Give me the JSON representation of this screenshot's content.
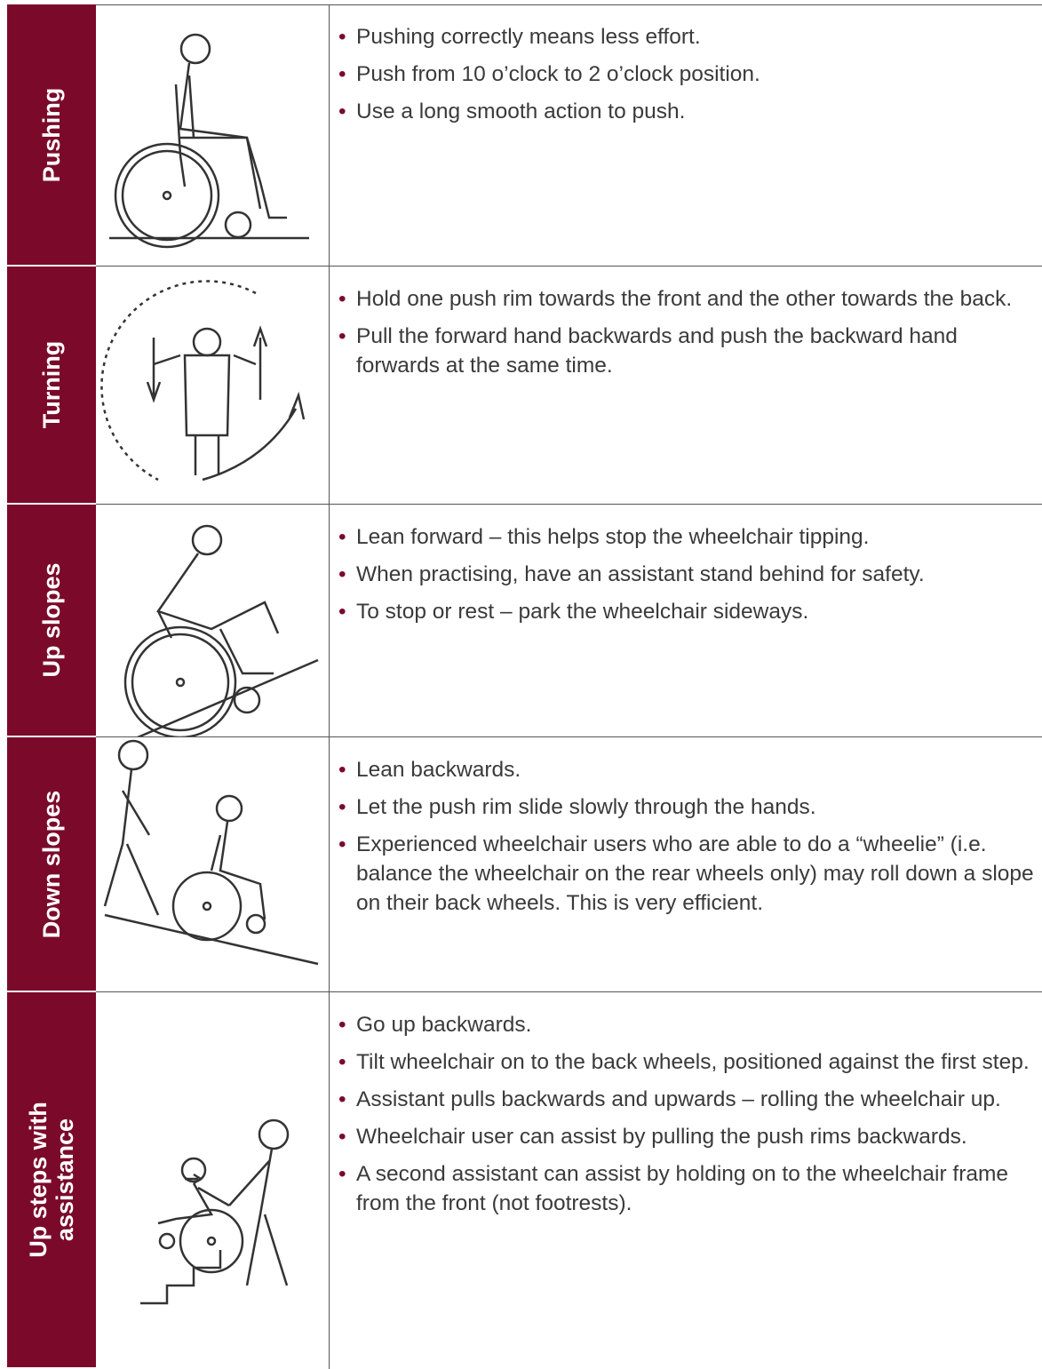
{
  "rows": [
    {
      "label": "Pushing",
      "bullets": [
        "Pushing correctly means less effort.",
        "Push from 10 o’clock to 2 o’clock position.",
        "Use a long smooth action to push."
      ]
    },
    {
      "label": "Turning",
      "bullets": [
        "Hold one push rim towards the front and the other towards the back.",
        "Pull the forward hand backwards and push the backward hand forwards at the same time."
      ]
    },
    {
      "label": "Up slopes",
      "bullets": [
        "Lean forward – this helps stop the wheelchair tipping.",
        "When practising, have an assistant stand behind for safety.",
        "To stop or rest – park the wheelchair sideways."
      ]
    },
    {
      "label": "Down slopes",
      "bullets": [
        "Lean backwards.",
        "Let the push rim slide slowly through the hands.",
        "Experienced wheelchair users who are able to do a “wheelie” (i.e. balance the wheelchair on the rear wheels only) may roll down a slope on their back wheels. This is very efficient."
      ]
    },
    {
      "label": "Up steps with assistance",
      "bullets": [
        "Go up backwards.",
        "Tilt wheelchair on to the back wheels, positioned against the first step.",
        "Assistant pulls backwards and upwards – rolling the wheelchair up.",
        "Wheelchair user can assist by pulling the push rims backwards.",
        "A second assistant can assist by holding on to the wheelchair frame from the front (not footrests)."
      ]
    }
  ]
}
